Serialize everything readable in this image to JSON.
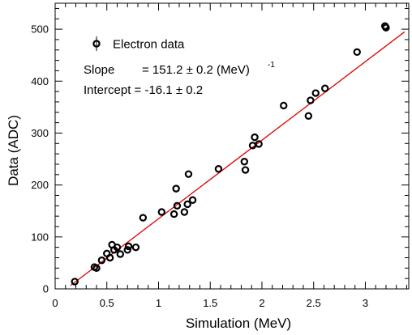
{
  "chart_data": {
    "type": "scatter",
    "xlabel": "Simulation (MeV)",
    "ylabel": "Data (ADC)",
    "xlim": [
      0,
      3.42
    ],
    "ylim": [
      0,
      550
    ],
    "x_ticks": [
      0,
      0.5,
      1,
      1.5,
      2,
      2.5,
      3
    ],
    "x_tick_labels": [
      "0",
      "0.5",
      "1",
      "1.5",
      "2",
      "2.5",
      "3"
    ],
    "y_ticks": [
      0,
      100,
      200,
      300,
      400,
      500
    ],
    "y_tick_labels": [
      "0",
      "100",
      "200",
      "300",
      "400",
      "500"
    ],
    "grid": false,
    "legend": {
      "placement": "top-left",
      "entries": [
        "Electron data"
      ]
    },
    "annotations": {
      "slope_label": "Slope",
      "slope_value": "= 151.2 ± 0.2 (MeV)",
      "slope_exponent": "-1",
      "intercept_text": "Intercept = -16.1 ± 0.2"
    },
    "series": [
      {
        "name": "Electron data",
        "marker": "open-circle",
        "color": "#000000",
        "points": [
          [
            0.19,
            14
          ],
          [
            0.38,
            42
          ],
          [
            0.4,
            40
          ],
          [
            0.45,
            55
          ],
          [
            0.5,
            68
          ],
          [
            0.53,
            60
          ],
          [
            0.55,
            85
          ],
          [
            0.57,
            75
          ],
          [
            0.6,
            80
          ],
          [
            0.63,
            67
          ],
          [
            0.7,
            75
          ],
          [
            0.71,
            82
          ],
          [
            0.78,
            80
          ],
          [
            0.85,
            137
          ],
          [
            1.03,
            148
          ],
          [
            1.15,
            144
          ],
          [
            1.17,
            193
          ],
          [
            1.18,
            160
          ],
          [
            1.25,
            148
          ],
          [
            1.28,
            163
          ],
          [
            1.29,
            221
          ],
          [
            1.33,
            171
          ],
          [
            1.58,
            231
          ],
          [
            1.83,
            245
          ],
          [
            1.84,
            229
          ],
          [
            1.91,
            276
          ],
          [
            1.93,
            292
          ],
          [
            1.97,
            279
          ],
          [
            2.21,
            353
          ],
          [
            2.45,
            333
          ],
          [
            2.47,
            363
          ],
          [
            2.52,
            377
          ],
          [
            2.61,
            386
          ],
          [
            2.92,
            456
          ],
          [
            3.19,
            506
          ],
          [
            3.2,
            503
          ]
        ]
      }
    ],
    "fit_line": {
      "color": "#e00000",
      "slope": 151.2,
      "intercept": -16.1,
      "x_range": [
        0.15,
        3.38
      ]
    }
  }
}
